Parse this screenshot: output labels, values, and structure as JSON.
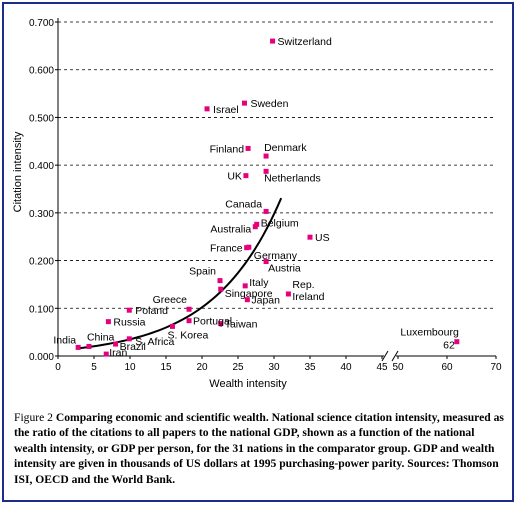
{
  "chart_data": {
    "type": "scatter",
    "ylabel": "Citation intensity",
    "xlabel": "Wealth intensity",
    "xlim": [
      0,
      70
    ],
    "ylim": [
      0,
      0.7
    ],
    "x_ticks": [
      "0",
      "5",
      "10",
      "15",
      "20",
      "25",
      "30",
      "35",
      "40",
      "45",
      "50",
      "60",
      "70"
    ],
    "y_ticks": [
      "0.000",
      "0.100",
      "0.200",
      "0.300",
      "0.400",
      "0.500",
      "0.600",
      "0.700"
    ],
    "grid": "horizontal dashed",
    "axis_break_between": [
      45,
      50
    ],
    "marker_color": "#e6007e",
    "trend_color": "#000000",
    "points": [
      {
        "label": "Switzerland",
        "x": 29.8,
        "y": 0.66
      },
      {
        "label": "Israel",
        "x": 20.7,
        "y": 0.518
      },
      {
        "label": "Sweden",
        "x": 25.9,
        "y": 0.53
      },
      {
        "label": "Finland",
        "x": 26.4,
        "y": 0.435
      },
      {
        "label": "Denmark",
        "x": 28.9,
        "y": 0.419
      },
      {
        "label": "UK",
        "x": 26.1,
        "y": 0.378
      },
      {
        "label": "Netherlands",
        "x": 28.9,
        "y": 0.387
      },
      {
        "label": "Canada",
        "x": 28.9,
        "y": 0.303
      },
      {
        "label": "Australia",
        "x": 27.4,
        "y": 0.271
      },
      {
        "label": "Belgium",
        "x": 27.6,
        "y": 0.276
      },
      {
        "label": "US",
        "x": 35.0,
        "y": 0.249
      },
      {
        "label": "France",
        "x": 26.2,
        "y": 0.227
      },
      {
        "label": "Germany",
        "x": 26.5,
        "y": 0.228
      },
      {
        "label": "Austria",
        "x": 28.9,
        "y": 0.198
      },
      {
        "label": "Spain",
        "x": 22.5,
        "y": 0.158
      },
      {
        "label": "Italy",
        "x": 26.0,
        "y": 0.147
      },
      {
        "label": "Singapore",
        "x": 22.6,
        "y": 0.14
      },
      {
        "label": "Rep. Ireland",
        "x": 32.0,
        "y": 0.13
      },
      {
        "label": "Japan",
        "x": 26.3,
        "y": 0.118
      },
      {
        "label": "Greece",
        "x": 18.2,
        "y": 0.098
      },
      {
        "label": "Poland",
        "x": 9.9,
        "y": 0.096
      },
      {
        "label": "Russia",
        "x": 7.0,
        "y": 0.072
      },
      {
        "label": "Portugal",
        "x": 18.2,
        "y": 0.074
      },
      {
        "label": "Taiwan",
        "x": 22.6,
        "y": 0.068
      },
      {
        "label": "S. Korea",
        "x": 15.9,
        "y": 0.062
      },
      {
        "label": "S. Africa",
        "x": 9.9,
        "y": 0.036
      },
      {
        "label": "India",
        "x": 2.8,
        "y": 0.018
      },
      {
        "label": "China",
        "x": 4.3,
        "y": 0.02
      },
      {
        "label": "Iran",
        "x": 6.7,
        "y": 0.004
      },
      {
        "label": "Brazil",
        "x": 8.0,
        "y": 0.025
      },
      {
        "label": "Luxembourg 62",
        "x": 62.0,
        "y": 0.03
      }
    ]
  },
  "caption": {
    "label": "Figure 2",
    "title": "Comparing economic and scientific wealth. National science citation intensity, measured as the ratio of the citations to all papers to the national GDP, shown as a function of the national wealth intensity, or GDP per person, for the 31 nations in the comparator group. GDP and wealth intensity are given in thousands of US dollars at 1995 purchasing-power parity. Sources: Thomson ISI, OECD and the World Bank."
  }
}
